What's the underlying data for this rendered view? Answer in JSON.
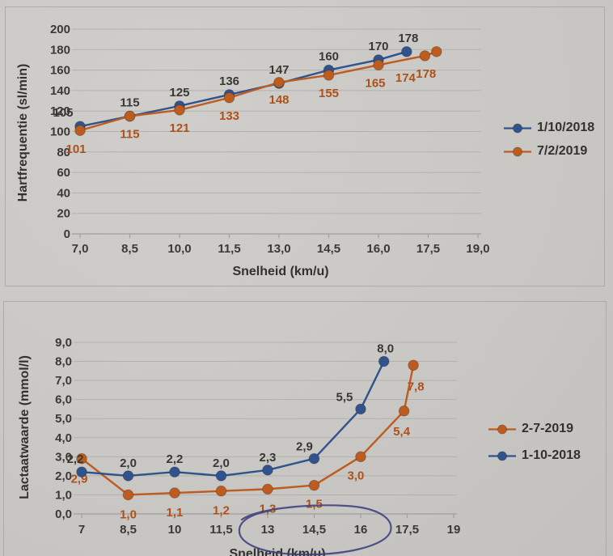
{
  "colors": {
    "paper": "#cac8c4",
    "box_border": "#adaba7",
    "grid": "#b3b1ad",
    "axis_line": "#a09e9a",
    "axis_text": "#3b3936",
    "blue": "#30538e",
    "orange": "#bd5c20",
    "blue_label": "#3a3834",
    "orange_label": "#ad511a",
    "pen": "#3d3f7d"
  },
  "chart_data": [
    {
      "type": "line",
      "title": "",
      "xlabel": "Snelheid (km/u)",
      "ylabel": "Hartfrequentie (sl/min)",
      "xlim": [
        7,
        19
      ],
      "ylim": [
        0,
        200
      ],
      "grid": "horizontal",
      "legend_position": "right-middle",
      "x_ticks": [
        "7,0",
        "8,5",
        "10,0",
        "11,5",
        "13,0",
        "14,5",
        "16,0",
        "17,5",
        "19,0"
      ],
      "y_ticks": [
        "0",
        "20",
        "40",
        "60",
        "80",
        "100",
        "120",
        "140",
        "160",
        "180",
        "200"
      ],
      "series": [
        {
          "name": "1/10/2018",
          "color_key": "blue",
          "label_color_key": "blue_label",
          "x": [
            7,
            8.5,
            10,
            11.5,
            13,
            14.5,
            16,
            16.85
          ],
          "y": [
            105,
            115,
            125,
            136,
            147,
            160,
            170,
            178
          ],
          "labels": [
            "105",
            "115",
            "125",
            "136",
            "147",
            "160",
            "170",
            "178"
          ],
          "label_offsets": [
            [
              -21,
              -12
            ],
            [
              0,
              -12
            ],
            [
              0,
              -12
            ],
            [
              0,
              -12
            ],
            [
              0,
              -12
            ],
            [
              0,
              -12
            ],
            [
              0,
              -12
            ],
            [
              2,
              -12
            ]
          ]
        },
        {
          "name": "7/2/2019",
          "color_key": "orange",
          "label_color_key": "orange_label",
          "x": [
            7,
            8.5,
            10,
            11.5,
            13,
            14.5,
            16,
            17.4,
            17.75
          ],
          "y": [
            101,
            115,
            121,
            133,
            148,
            155,
            165,
            174,
            178
          ],
          "labels": [
            "101",
            "115",
            "121",
            "133",
            "148",
            "155",
            "165",
            "174",
            "178"
          ],
          "label_offsets": [
            [
              -5,
              28
            ],
            [
              0,
              27
            ],
            [
              0,
              27
            ],
            [
              0,
              27
            ],
            [
              0,
              26
            ],
            [
              0,
              27
            ],
            [
              -4,
              27
            ],
            [
              -24,
              32
            ],
            [
              -13,
              32
            ]
          ]
        }
      ]
    },
    {
      "type": "line",
      "title": "",
      "xlabel": "Snelheid (km/u)",
      "ylabel": "Lactaatwaarde (mmol/l)",
      "xlim": [
        7,
        19
      ],
      "ylim": [
        0,
        9
      ],
      "grid": "horizontal",
      "legend_position": "right-middle",
      "x_ticks": [
        "7",
        "8,5",
        "10",
        "11,5",
        "13",
        "14,5",
        "16",
        "17,5",
        "19"
      ],
      "y_ticks": [
        "0,0",
        "1,0",
        "2,0",
        "3,0",
        "4,0",
        "5,0",
        "6,0",
        "7,0",
        "8,0",
        "9,0"
      ],
      "series": [
        {
          "name": "2-7-2019",
          "color_key": "orange",
          "label_color_key": "orange_label",
          "x": [
            7,
            8.5,
            10,
            11.5,
            13,
            14.5,
            16,
            17.4,
            17.7
          ],
          "y": [
            2.9,
            1.0,
            1.1,
            1.2,
            1.3,
            1.5,
            3.0,
            5.4,
            7.8
          ],
          "labels": [
            "2,9",
            "1,0",
            "1,1",
            "1,2",
            "1,3",
            "1,5",
            "3,0",
            "5,4",
            "7,8"
          ],
          "label_offsets": [
            [
              -3,
              30
            ],
            [
              0,
              29
            ],
            [
              0,
              29
            ],
            [
              0,
              29
            ],
            [
              0,
              29
            ],
            [
              0,
              28
            ],
            [
              -6,
              28
            ],
            [
              -3,
              30
            ],
            [
              3,
              31
            ]
          ]
        },
        {
          "name": "1-10-2018",
          "color_key": "blue",
          "label_color_key": "blue_label",
          "x": [
            7,
            8.5,
            10,
            11.5,
            13,
            14.5,
            16,
            16.75
          ],
          "y": [
            2.2,
            2.0,
            2.2,
            2.0,
            2.3,
            2.9,
            5.5,
            8.0
          ],
          "labels": [
            "2,2",
            "2,0",
            "2,2",
            "2,0",
            "2,3",
            "2,9",
            "5,5",
            "8,0"
          ],
          "label_offsets": [
            [
              -8,
              -11
            ],
            [
              0,
              -11
            ],
            [
              0,
              -11
            ],
            [
              0,
              -11
            ],
            [
              0,
              -11
            ],
            [
              -12,
              -10
            ],
            [
              -20,
              -10
            ],
            [
              2,
              -11
            ]
          ]
        }
      ]
    }
  ],
  "annotation": {
    "type": "hand-drawn-ellipse",
    "meaning": "pen circle around x-axis labels 13 to 16 of the lactate chart"
  }
}
